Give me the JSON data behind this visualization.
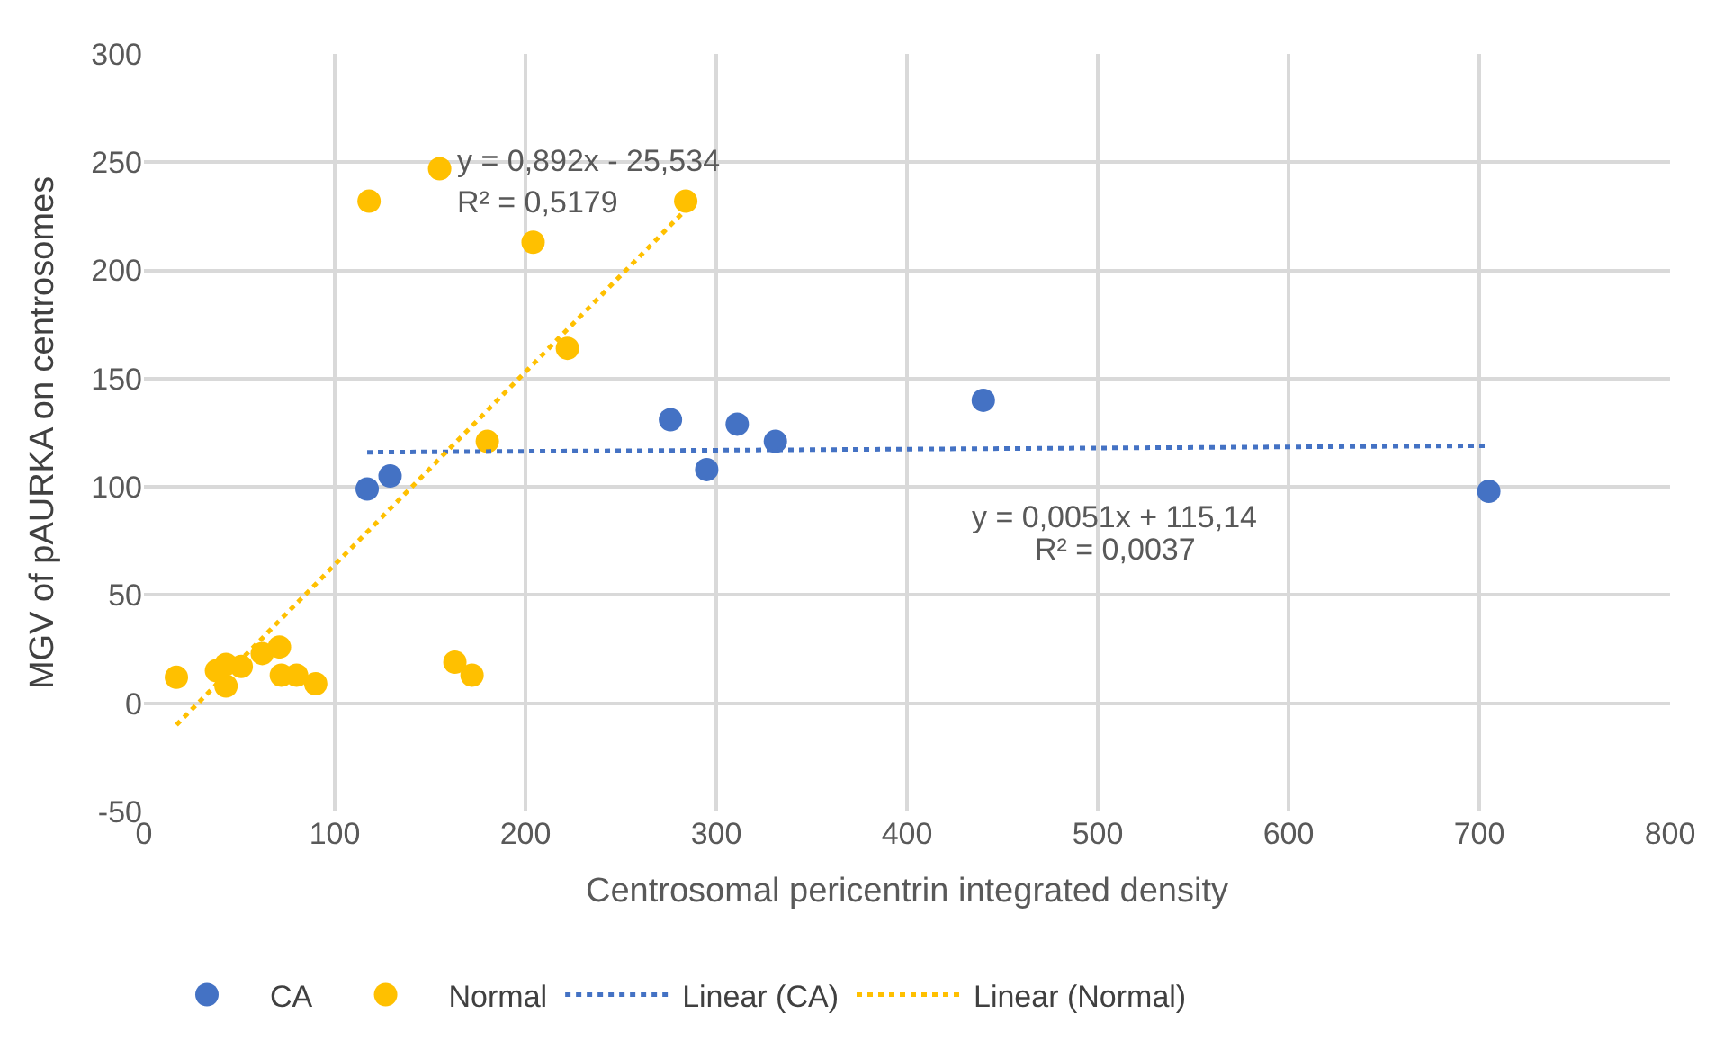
{
  "chart_data": {
    "type": "scatter",
    "xlabel": "Centrosomal pericentrin integrated density",
    "ylabel": "MGV of pAURKA on centrosomes",
    "xlim": [
      0,
      800
    ],
    "xticks": [
      0,
      100,
      200,
      300,
      400,
      500,
      600,
      700,
      800
    ],
    "ylim": [
      -50,
      300
    ],
    "yticks": [
      -50,
      0,
      50,
      100,
      150,
      200,
      250,
      300
    ],
    "grid": true,
    "legend": "bottom",
    "marker": "circle",
    "series": [
      {
        "name": "CA",
        "color": "#4472c4",
        "x": [
          117,
          129,
          276,
          295,
          311,
          331,
          440,
          705
        ],
        "values": [
          99,
          105,
          131,
          108,
          129,
          121,
          140,
          98
        ]
      },
      {
        "name": "Normal",
        "color": "#ffc000",
        "x": [
          17,
          38,
          43,
          43,
          51,
          62,
          71,
          72,
          80,
          90,
          118,
          155,
          204,
          222,
          180,
          163,
          172,
          284
        ],
        "values": [
          12,
          15,
          18,
          8,
          17,
          23,
          26,
          13,
          13,
          9,
          232,
          247,
          213,
          164,
          121,
          19,
          13,
          232
        ]
      },
      {
        "name": "Linear (CA)",
        "type": "line",
        "color": "#4472c4",
        "line_style": "dotted",
        "marker": "none",
        "x": [
          117,
          705
        ],
        "values": [
          116,
          119
        ]
      },
      {
        "name": "Linear (Normal)",
        "type": "line",
        "color": "#ffc000",
        "line_style": "dotted",
        "marker": "none",
        "x": [
          17,
          284
        ],
        "values": [
          -10,
          228
        ]
      }
    ],
    "annotations": [
      "y = 0,892x - 25,534",
      "R² = 0,5179",
      "y = 0,0051x + 115,14",
      "R² = 0,0037"
    ]
  }
}
